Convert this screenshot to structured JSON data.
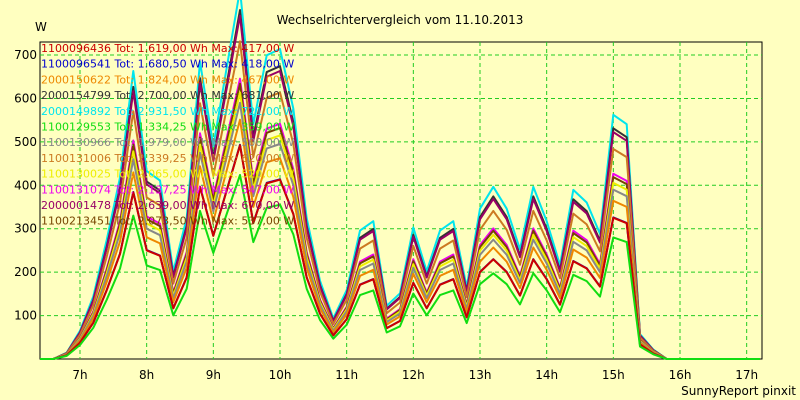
{
  "chart_data": {
    "type": "line",
    "title": "Wechselrichtervergleich vom 11.10.2013",
    "ylabel": "W",
    "xlabel": "",
    "ylim": [
      0,
      730
    ],
    "yticks": [
      100,
      200,
      300,
      400,
      500,
      600,
      700
    ],
    "xlim": [
      6.4,
      17.23
    ],
    "xticks": [
      7,
      8,
      9,
      10,
      11,
      12,
      13,
      14,
      15,
      16,
      17
    ],
    "xtick_labels": [
      "7h",
      "8h",
      "9h",
      "10h",
      "11h",
      "12h",
      "13h",
      "14h",
      "15h",
      "16h",
      "17h"
    ],
    "grid": true,
    "legend_position": "top-left",
    "footer": "SunnyReport pinxit",
    "x": [
      6.4,
      6.6,
      6.8,
      7.0,
      7.2,
      7.4,
      7.6,
      7.8,
      8.0,
      8.2,
      8.4,
      8.6,
      8.8,
      9.0,
      9.2,
      9.4,
      9.6,
      9.8,
      10.0,
      10.2,
      10.4,
      10.6,
      10.8,
      11.0,
      11.2,
      11.4,
      11.6,
      11.8,
      12.0,
      12.2,
      12.4,
      12.6,
      12.8,
      13.0,
      13.2,
      13.4,
      13.6,
      13.8,
      14.0,
      14.2,
      14.4,
      14.6,
      14.8,
      15.0,
      15.2,
      15.4,
      15.6,
      15.8,
      16.0,
      16.2,
      16.4,
      16.6,
      16.8,
      17.0,
      17.2
    ],
    "base_profile": [
      0,
      0,
      0.02,
      0.09,
      0.2,
      0.38,
      0.58,
      0.92,
      0.6,
      0.57,
      0.28,
      0.45,
      0.95,
      0.68,
      0.93,
      1.18,
      0.75,
      0.97,
      0.99,
      0.8,
      0.45,
      0.25,
      0.13,
      0.22,
      0.41,
      0.44,
      0.17,
      0.21,
      0.42,
      0.28,
      0.41,
      0.44,
      0.23,
      0.48,
      0.55,
      0.48,
      0.35,
      0.55,
      0.44,
      0.3,
      0.54,
      0.5,
      0.4,
      0.78,
      0.75,
      0.08,
      0.03,
      0,
      0,
      0,
      0,
      0,
      0,
      0,
      0
    ],
    "series": [
      {
        "name": "1100096436",
        "legend": "1100096436 Tot: 1.619,00 Wh Max: 417,00 W",
        "color": "#cc0000",
        "scale": 417
      },
      {
        "name": "1100096541",
        "legend": "1100096541 Tot: 1.680,50 Wh Max: 418,00 W",
        "color": "#0000cc",
        "scale": 418
      },
      {
        "name": "2000150622",
        "legend": "2000150622 Tot: 1.824,00 Wh Max: 467,00 W",
        "color": "#ee8800",
        "scale": 467
      },
      {
        "name": "2000154799",
        "legend": "2000154799 Tot: 2.700,00 Wh Max: 681,00 W",
        "color": "#333333",
        "scale": 681
      },
      {
        "name": "2000149892",
        "legend": "2000149892 Tot: 2.931,50 Wh Max: 721,00 W",
        "color": "#00e5ee",
        "scale": 721
      },
      {
        "name": "1100129553",
        "legend": "1100129553 Tot: 1.334,25 Wh Max: 359,00 W",
        "color": "#11dd11",
        "scale": 359
      },
      {
        "name": "1100130966",
        "legend": "1100130966 Tot: 1.979,00 Wh Max: 500,00 W",
        "color": "#888888",
        "scale": 500
      },
      {
        "name": "1100131006",
        "legend": "1100131006 Tot: 2.339,25 Wh Max: 620,00 W",
        "color": "#cc7a22",
        "scale": 620
      },
      {
        "name": "1100130025",
        "legend": "1100130025 Tot: 2.065,00 Wh Max: 520,00 W",
        "color": "#eeee00",
        "scale": 520
      },
      {
        "name": "1100131074",
        "legend": "1100131074 Tot: 2.137,25 Wh Max: 547,00 W",
        "color": "#ee00ee",
        "scale": 547
      },
      {
        "name": "2000001478",
        "legend": "2000001478 Tot: 2.639,00 Wh Max: 670,00 W",
        "color": "#990066",
        "scale": 670
      },
      {
        "name": "1100213451",
        "legend": "1100213451 Tot: 2.073,50 Wh Max: 537,00 W",
        "color": "#774400",
        "scale": 537
      }
    ]
  }
}
